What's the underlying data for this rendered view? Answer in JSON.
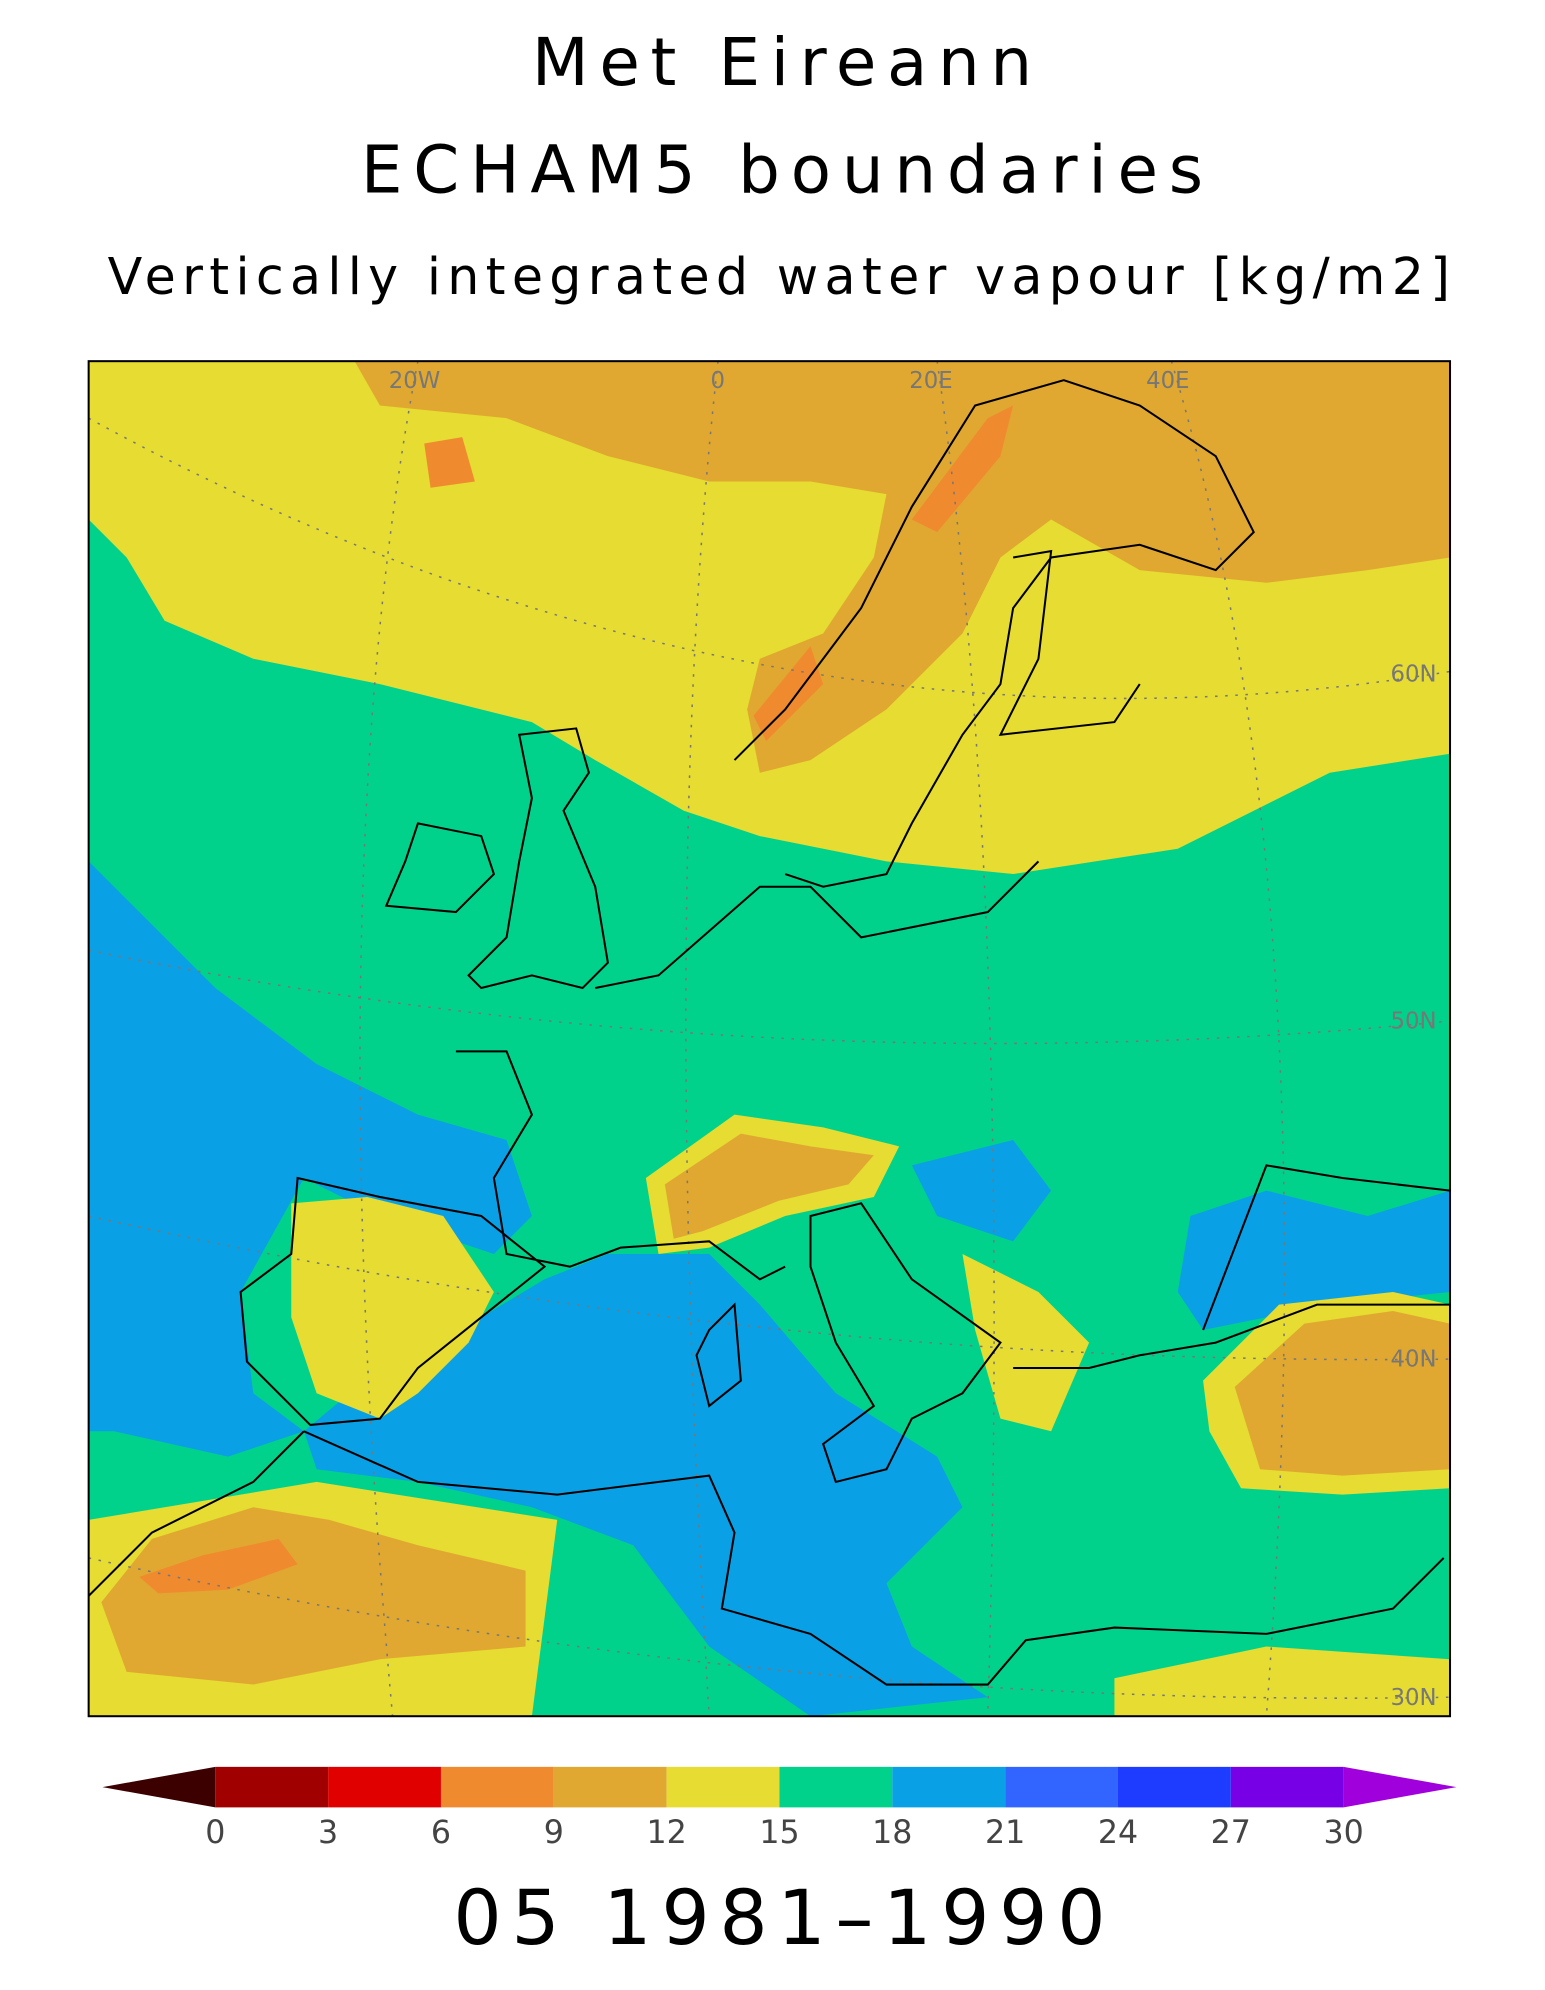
{
  "title_lines": [
    "Met Eireann",
    "ECHAM5 boundaries"
  ],
  "subtitle": "Vertically integrated water vapour [kg/m2]",
  "period": "05 1981–1990",
  "grid_labels": [
    "20W",
    "0",
    "20E",
    "40E",
    "60N",
    "50N",
    "40N",
    "30N"
  ],
  "colorbar": {
    "levels": [
      0,
      3,
      6,
      9,
      12,
      15,
      18,
      21,
      24,
      27,
      30
    ],
    "colors": [
      "#3c0000",
      "#a00000",
      "#e00000",
      "#f08a2e",
      "#e0a830",
      "#e6dc32",
      "#00d28c",
      "#0aa0e6",
      "#3264ff",
      "#1e3cff",
      "#7800e6",
      "#a000dc"
    ]
  }
}
